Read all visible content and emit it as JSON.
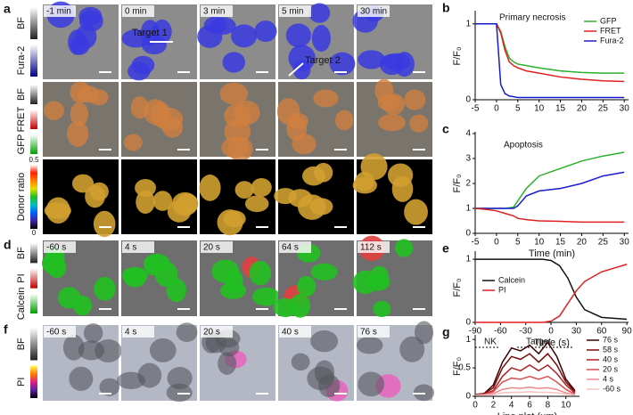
{
  "image_panels": [
    {
      "label": "a",
      "time_labels": [
        "-1 min",
        "0 min",
        "3 min",
        "5 min",
        "30 min"
      ],
      "rows": [
        {
          "channels": [
            "BF",
            "Fura-2"
          ]
        },
        {
          "channels": [
            "BF",
            "FRET",
            "GFP"
          ]
        },
        {
          "channels": [
            "Donor ratio"
          ],
          "scale": [
            "0.5",
            "0"
          ]
        }
      ],
      "targets": [
        "Target 1",
        "Target 2"
      ]
    },
    {
      "label": "d",
      "time_labels": [
        "-60 s",
        "4 s",
        "20 s",
        "64 s",
        "112 s"
      ],
      "rows": [
        {
          "channels": [
            "BF",
            "PI",
            "Calcein"
          ]
        }
      ]
    },
    {
      "label": "f",
      "time_labels": [
        "-60 s",
        "4 s",
        "20 s",
        "40 s",
        "76 s"
      ],
      "rows": [
        {
          "channels": [
            "BF",
            "PI"
          ]
        }
      ]
    }
  ],
  "chart_data": [
    {
      "label": "b",
      "type": "line",
      "annotations": [
        "Primary necrosis"
      ],
      "ylabel": "F/F₀",
      "legend": "upper right",
      "x": [
        -5,
        -4,
        -3,
        -2,
        -1,
        0,
        1,
        2,
        3,
        4,
        5,
        7,
        10,
        15,
        20,
        25,
        30
      ],
      "series": [
        {
          "name": "GFP",
          "color": "#2bb02b",
          "values": [
            1,
            1,
            1,
            1,
            1,
            1,
            0.9,
            0.7,
            0.55,
            0.5,
            0.47,
            0.45,
            0.42,
            0.38,
            0.36,
            0.35,
            0.35
          ]
        },
        {
          "name": "FRET",
          "color": "#e02020",
          "values": [
            1,
            1,
            1,
            1,
            1,
            1,
            0.88,
            0.65,
            0.5,
            0.45,
            0.42,
            0.38,
            0.35,
            0.3,
            0.27,
            0.25,
            0.24
          ]
        },
        {
          "name": "Fura-2",
          "color": "#1a1ad0",
          "values": [
            1,
            1,
            1,
            1,
            1,
            1,
            0.2,
            0.08,
            0.05,
            0.04,
            0.03,
            0.03,
            0.03,
            0.03,
            0.03,
            0.03,
            0.03
          ]
        }
      ],
      "xlim": [
        -5,
        31
      ],
      "xticks": [
        -5,
        0,
        5,
        10,
        15,
        20,
        25,
        30
      ],
      "ylim": [
        0,
        1.15
      ],
      "yticks": [
        0,
        1
      ]
    },
    {
      "label": "c",
      "type": "line",
      "annotations": [
        "Apoptosis"
      ],
      "ylabel": "F/F₀",
      "xlabel": "Time (min)",
      "x": [
        -5,
        -2,
        0,
        2,
        4,
        5,
        7,
        10,
        15,
        20,
        25,
        30
      ],
      "series": [
        {
          "color": "#2bb02b",
          "values": [
            1,
            1,
            1,
            1,
            1.05,
            1.3,
            1.8,
            2.3,
            2.6,
            2.9,
            3.1,
            3.25
          ]
        },
        {
          "color": "#1a1ad0",
          "values": [
            1,
            1,
            1,
            1,
            1,
            1.1,
            1.5,
            1.7,
            1.8,
            2.0,
            2.3,
            2.45
          ]
        },
        {
          "color": "#e02020",
          "values": [
            1,
            0.95,
            0.9,
            0.8,
            0.7,
            0.6,
            0.55,
            0.5,
            0.48,
            0.45,
            0.45,
            0.45
          ]
        }
      ],
      "xlim": [
        -5,
        31
      ],
      "xticks": [
        -5,
        0,
        5,
        10,
        15,
        20,
        25,
        30
      ],
      "ylim": [
        0,
        4
      ],
      "yticks": [
        0,
        1,
        2,
        3,
        4
      ]
    },
    {
      "label": "e",
      "type": "line",
      "ylabel": "F/F₀",
      "xlabel": "Time (s)",
      "legend": "center left",
      "x": [
        -90,
        -60,
        -30,
        -10,
        0,
        10,
        20,
        30,
        40,
        60,
        90
      ],
      "series": [
        {
          "name": "Calcein",
          "color": "#111111",
          "values": [
            1,
            1,
            1,
            1,
            0.98,
            0.9,
            0.7,
            0.4,
            0.2,
            0.08,
            0.05
          ]
        },
        {
          "name": "PI",
          "color": "#e02020",
          "values": [
            0,
            0,
            0,
            0,
            0.02,
            0.1,
            0.3,
            0.5,
            0.65,
            0.8,
            0.92
          ]
        }
      ],
      "xlim": [
        -90,
        92
      ],
      "xticks": [
        -90,
        -60,
        -30,
        0,
        30,
        60,
        90
      ],
      "ylim": [
        0,
        1.1
      ],
      "yticks": [
        0,
        1
      ]
    },
    {
      "label": "g",
      "type": "line",
      "annotations": [
        "NK",
        "Target"
      ],
      "ylabel": "F/F₀",
      "xlabel": "Line plot (μm)",
      "legend": "right",
      "x": [
        0,
        1,
        2,
        3,
        4,
        5,
        6,
        7,
        8,
        9,
        10,
        11
      ],
      "series": [
        {
          "name": "76 s",
          "color": "#3a0000",
          "values": [
            0.03,
            0.05,
            0.2,
            0.6,
            0.85,
            0.8,
            0.9,
            0.75,
            0.95,
            0.7,
            0.3,
            0.1
          ]
        },
        {
          "name": "58 s",
          "color": "#7a0a0a",
          "values": [
            0.03,
            0.05,
            0.15,
            0.5,
            0.7,
            0.65,
            0.75,
            0.6,
            0.75,
            0.55,
            0.25,
            0.08
          ]
        },
        {
          "name": "40 s",
          "color": "#b02020",
          "values": [
            0.02,
            0.04,
            0.1,
            0.35,
            0.5,
            0.45,
            0.55,
            0.45,
            0.55,
            0.4,
            0.2,
            0.06
          ]
        },
        {
          "name": "20 s",
          "color": "#d85050",
          "values": [
            0.02,
            0.03,
            0.08,
            0.25,
            0.32,
            0.3,
            0.35,
            0.3,
            0.35,
            0.25,
            0.12,
            0.04
          ]
        },
        {
          "name": "4 s",
          "color": "#e88a8a",
          "values": [
            0.02,
            0.03,
            0.05,
            0.12,
            0.15,
            0.14,
            0.16,
            0.14,
            0.15,
            0.12,
            0.06,
            0.03
          ]
        },
        {
          "name": "-60 s",
          "color": "#f4c0c0",
          "values": [
            0.02,
            0.02,
            0.03,
            0.06,
            0.07,
            0.07,
            0.08,
            0.07,
            0.07,
            0.06,
            0.04,
            0.02
          ]
        }
      ],
      "xlim": [
        0,
        11.5
      ],
      "xticks": [
        0,
        2,
        4,
        6,
        8,
        10
      ],
      "ylim": [
        0,
        1.05
      ],
      "yticks": [
        0,
        0.5,
        1
      ]
    }
  ]
}
